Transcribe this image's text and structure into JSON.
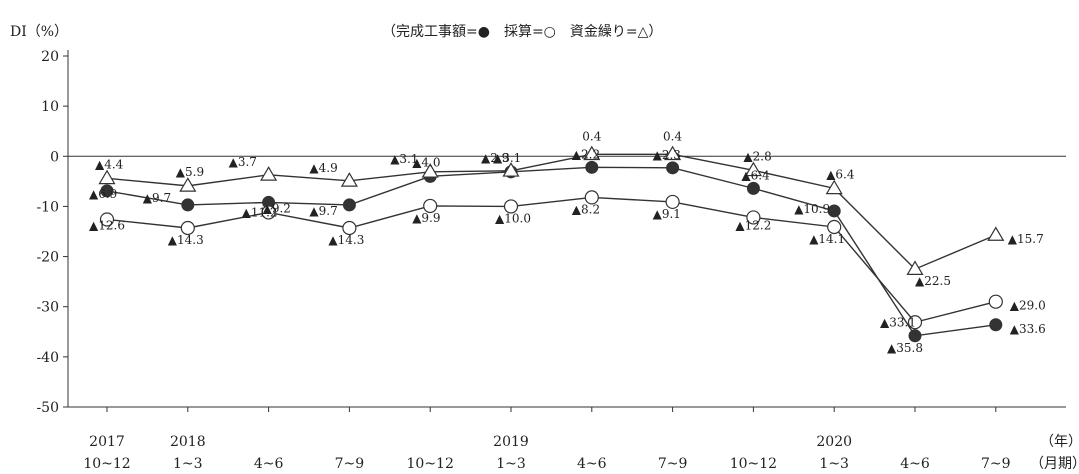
{
  "chart_data": {
    "type": "line",
    "title": "",
    "ylabel": "DI（%）",
    "ylim": [
      -50,
      20
    ],
    "yticks": [
      20,
      10,
      0,
      -10,
      -20,
      -30,
      -40,
      -50
    ],
    "legend": {
      "text": "（完成工事額=●　採算=○　資金繰り=△）",
      "placement": "top-right"
    },
    "x_unit_labels": {
      "year": "（年）",
      "period": "（月期）"
    },
    "x": [
      {
        "year": "2017",
        "period": "10~12"
      },
      {
        "year": "2018",
        "period": "1~3"
      },
      {
        "year": "",
        "period": "4~6"
      },
      {
        "year": "",
        "period": "7~9"
      },
      {
        "year": "",
        "period": "10~12"
      },
      {
        "year": "2019",
        "period": "1~3"
      },
      {
        "year": "",
        "period": "4~6"
      },
      {
        "year": "",
        "period": "7~9"
      },
      {
        "year": "",
        "period": "10~12"
      },
      {
        "year": "2020",
        "period": "1~3"
      },
      {
        "year": "",
        "period": "4~6"
      },
      {
        "year": "",
        "period": "7~9"
      }
    ],
    "series": [
      {
        "name": "完成工事額",
        "marker": "filled-circle",
        "values": [
          -6.9,
          -9.7,
          -9.2,
          -9.7,
          -4.0,
          -3.1,
          -2.2,
          -2.3,
          -6.4,
          -10.9,
          -35.8,
          -33.6
        ],
        "labels": [
          "▲6.9",
          "▲9.7",
          "▲9.2",
          "▲9.7",
          "▲4.0",
          "▲3.1",
          "▲2.2",
          "▲2.3",
          "▲6.4",
          "▲10.9",
          "▲35.8",
          "▲33.6"
        ]
      },
      {
        "name": "採算",
        "marker": "open-circle",
        "values": [
          -12.6,
          -14.3,
          -11.2,
          -14.3,
          -9.9,
          -10.0,
          -8.2,
          -9.1,
          -12.2,
          -14.1,
          -33.1,
          -29.0
        ],
        "labels": [
          "▲12.6",
          "▲14.3",
          "▲11.2",
          "▲14.3",
          "▲9.9",
          "▲10.0",
          "▲8.2",
          "▲9.1",
          "▲12.2",
          "▲14.1",
          "▲33.1",
          "▲29.0"
        ]
      },
      {
        "name": "資金繰り",
        "marker": "open-triangle",
        "values": [
          -4.4,
          -5.9,
          -3.7,
          -4.9,
          -3.1,
          -2.9,
          0.4,
          0.4,
          -2.8,
          -6.4,
          -22.5,
          -15.7
        ],
        "labels": [
          "▲4.4",
          "▲5.9",
          "▲3.7",
          "▲4.9",
          "▲3.1",
          "▲2.9",
          "0.4",
          "0.4",
          "▲2.8",
          "▲6.4",
          "▲22.5",
          "▲15.7"
        ]
      }
    ],
    "colors": {
      "line": "#333333",
      "filled_marker": "#333333",
      "open_marker_fill": "#ffffff",
      "text": "#222222"
    }
  }
}
